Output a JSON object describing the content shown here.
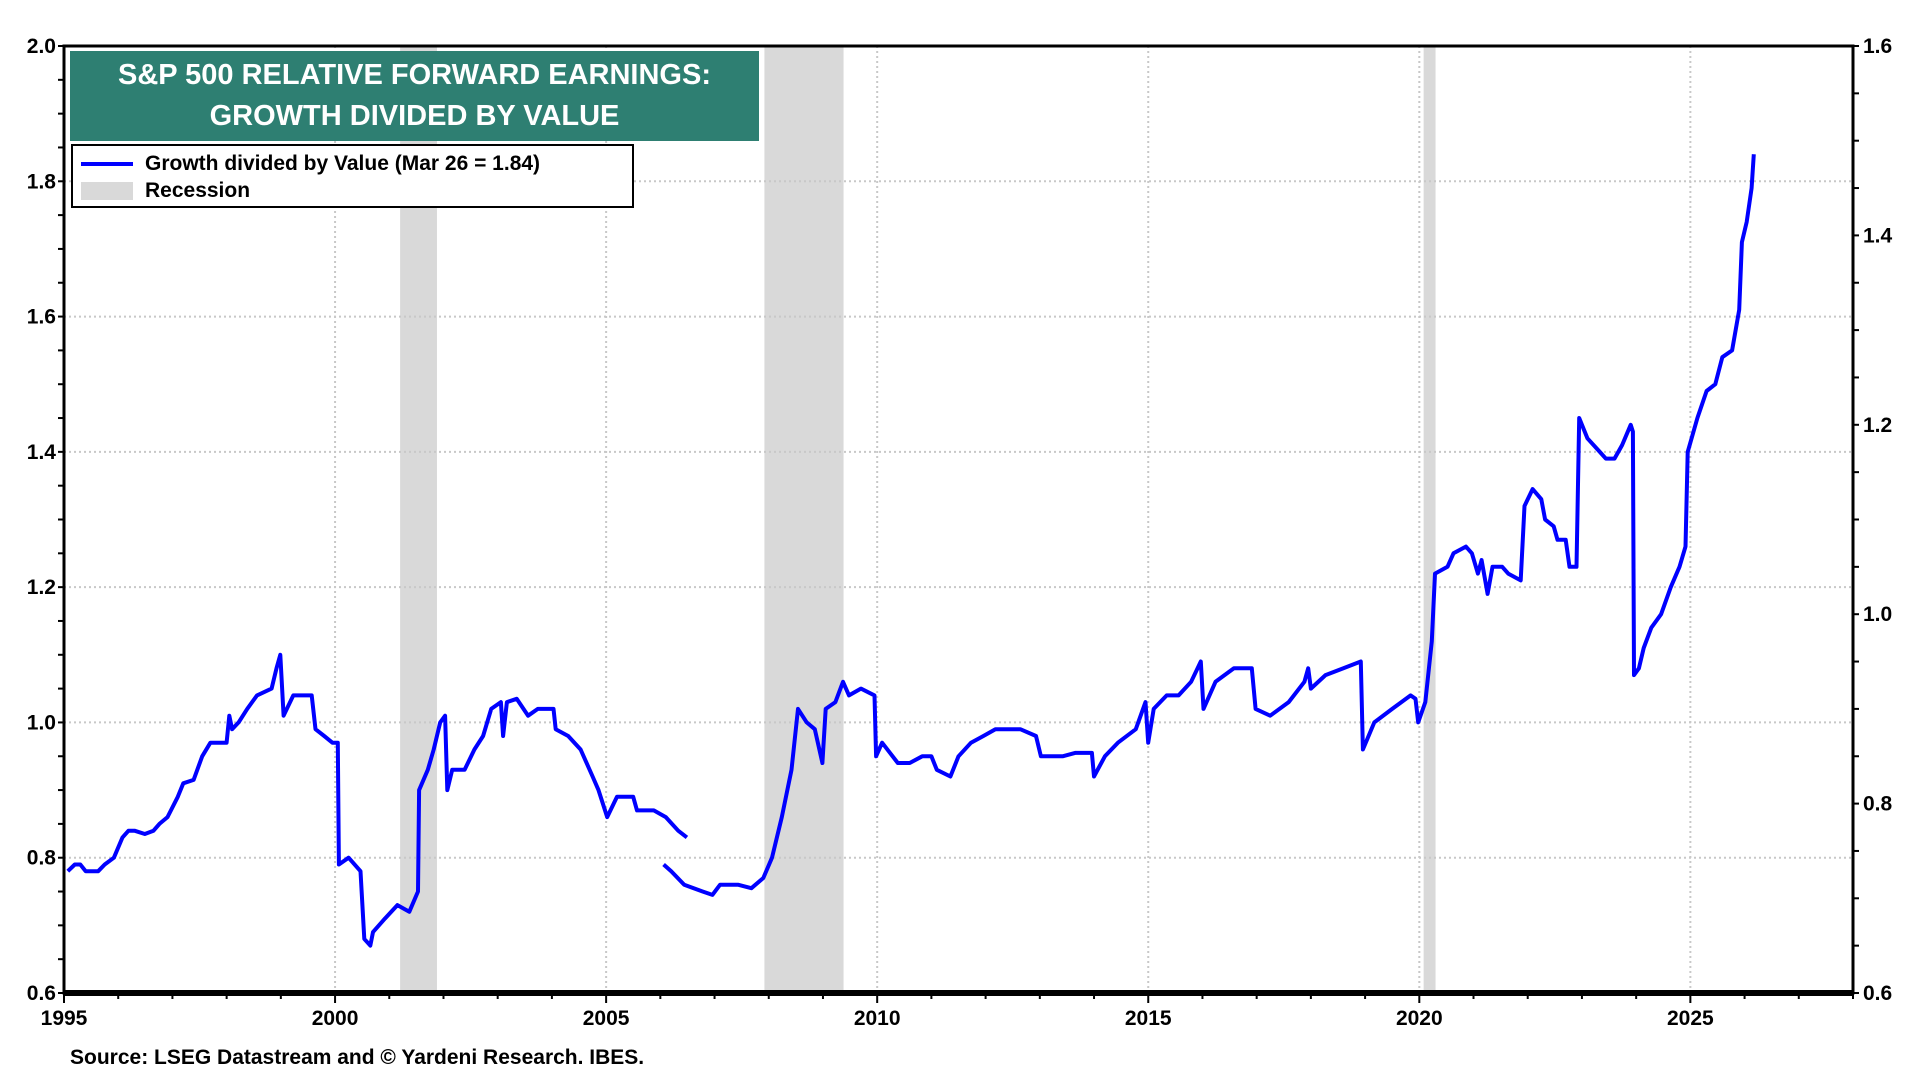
{
  "chart_data": {
    "type": "line",
    "title": "S&P 500 RELATIVE FORWARD EARNINGS:",
    "subtitle": "GROWTH DIVIDED BY VALUE",
    "xlabel": "",
    "ylabel": "",
    "xlim": [
      1995,
      2028
    ],
    "ylim": [
      0.6,
      2.0
    ],
    "ylim_right": [
      0.6,
      1.6
    ],
    "x_ticks": [
      "1995",
      "2000",
      "2005",
      "2010",
      "2015",
      "2020",
      "2025"
    ],
    "y_ticks": [
      "0.6",
      "0.8",
      "1.0",
      "1.2",
      "1.4",
      "1.6",
      "1.8",
      "2.0"
    ],
    "y_ticks_right": [
      "0.6",
      "0.8",
      "1.0",
      "1.2",
      "1.4",
      "1.6"
    ],
    "grid": true,
    "legend_position": "top-left",
    "legend": [
      {
        "label": "Growth divided by Value (Mar 26 = 1.84)",
        "color": "#0000ff",
        "kind": "line"
      },
      {
        "label": "Recession",
        "color": "#d9d9d9",
        "kind": "box"
      }
    ],
    "recessions": [
      [
        2001.2,
        2001.88
      ],
      [
        2007.92,
        2009.38
      ],
      [
        2020.08,
        2020.3
      ]
    ],
    "series": [
      {
        "name": "Growth divided by Value",
        "color": "#0000ff",
        "segments": [
          [
            [
              1995.07,
              0.78
            ],
            [
              1995.2,
              0.79
            ],
            [
              1995.3,
              0.79
            ],
            [
              1995.4,
              0.78
            ],
            [
              1995.63,
              0.78
            ],
            [
              1995.75,
              0.79
            ],
            [
              1995.92,
              0.8
            ],
            [
              1996.08,
              0.83
            ],
            [
              1996.19,
              0.84
            ],
            [
              1996.3,
              0.84
            ],
            [
              1996.49,
              0.835
            ],
            [
              1996.65,
              0.84
            ],
            [
              1996.76,
              0.85
            ],
            [
              1996.91,
              0.86
            ],
            [
              1997.1,
              0.89
            ],
            [
              1997.2,
              0.91
            ],
            [
              1997.39,
              0.915
            ],
            [
              1997.55,
              0.95
            ],
            [
              1997.7,
              0.97
            ],
            [
              1998.0,
              0.97
            ],
            [
              1998.05,
              1.01
            ],
            [
              1998.1,
              0.99
            ],
            [
              1998.22,
              1.0
            ],
            [
              1998.38,
              1.02
            ],
            [
              1998.56,
              1.04
            ],
            [
              1998.83,
              1.05
            ],
            [
              1998.92,
              1.08
            ],
            [
              1998.99,
              1.1
            ],
            [
              1999.05,
              1.01
            ],
            [
              1999.23,
              1.04
            ],
            [
              1999.46,
              1.04
            ],
            [
              1999.57,
              1.04
            ],
            [
              1999.64,
              0.99
            ],
            [
              1999.8,
              0.98
            ],
            [
              1999.95,
              0.97
            ],
            [
              2000.05,
              0.97
            ],
            [
              2000.07,
              0.79
            ],
            [
              2000.25,
              0.8
            ],
            [
              2000.47,
              0.78
            ],
            [
              2000.54,
              0.68
            ],
            [
              2000.65,
              0.67
            ],
            [
              2000.7,
              0.69
            ],
            [
              2000.92,
              0.71
            ],
            [
              2001.15,
              0.73
            ],
            [
              2001.37,
              0.72
            ],
            [
              2001.53,
              0.75
            ],
            [
              2001.55,
              0.9
            ],
            [
              2001.71,
              0.93
            ],
            [
              2001.82,
              0.96
            ],
            [
              2001.94,
              1.0
            ],
            [
              2002.03,
              1.01
            ],
            [
              2002.07,
              0.9
            ],
            [
              2002.16,
              0.93
            ],
            [
              2002.39,
              0.93
            ],
            [
              2002.57,
              0.96
            ],
            [
              2002.73,
              0.98
            ],
            [
              2002.88,
              1.02
            ],
            [
              2003.06,
              1.03
            ],
            [
              2003.1,
              0.98
            ],
            [
              2003.17,
              1.03
            ],
            [
              2003.35,
              1.035
            ],
            [
              2003.56,
              1.01
            ],
            [
              2003.74,
              1.02
            ],
            [
              2004.03,
              1.02
            ],
            [
              2004.07,
              0.99
            ],
            [
              2004.3,
              0.98
            ],
            [
              2004.53,
              0.96
            ],
            [
              2004.75,
              0.92
            ],
            [
              2004.86,
              0.9
            ],
            [
              2005.02,
              0.86
            ],
            [
              2005.2,
              0.89
            ],
            [
              2005.5,
              0.89
            ],
            [
              2005.57,
              0.87
            ],
            [
              2005.88,
              0.87
            ],
            [
              2006.1,
              0.86
            ],
            [
              2006.33,
              0.84
            ],
            [
              2006.49,
              0.83
            ]
          ],
          [
            [
              2006.06,
              0.79
            ],
            [
              2006.2,
              0.78
            ],
            [
              2006.44,
              0.76
            ],
            [
              2006.78,
              0.75
            ],
            [
              2006.96,
              0.745
            ],
            [
              2007.1,
              0.76
            ],
            [
              2007.44,
              0.76
            ],
            [
              2007.68,
              0.755
            ],
            [
              2007.9,
              0.77
            ],
            [
              2008.06,
              0.8
            ],
            [
              2008.24,
              0.86
            ],
            [
              2008.42,
              0.93
            ],
            [
              2008.54,
              1.02
            ],
            [
              2008.7,
              1.0
            ],
            [
              2008.85,
              0.99
            ],
            [
              2008.99,
              0.94
            ],
            [
              2009.05,
              1.02
            ],
            [
              2009.23,
              1.03
            ],
            [
              2009.37,
              1.06
            ],
            [
              2009.48,
              1.04
            ],
            [
              2009.7,
              1.05
            ],
            [
              2009.95,
              1.04
            ],
            [
              2009.98,
              0.95
            ],
            [
              2010.09,
              0.97
            ],
            [
              2010.38,
              0.94
            ],
            [
              2010.6,
              0.94
            ],
            [
              2010.83,
              0.95
            ],
            [
              2011.0,
              0.95
            ],
            [
              2011.1,
              0.93
            ],
            [
              2011.35,
              0.92
            ],
            [
              2011.5,
              0.95
            ],
            [
              2011.73,
              0.97
            ],
            [
              2011.96,
              0.98
            ],
            [
              2012.18,
              0.99
            ],
            [
              2012.64,
              0.99
            ],
            [
              2012.93,
              0.98
            ],
            [
              2013.02,
              0.95
            ],
            [
              2013.42,
              0.95
            ],
            [
              2013.65,
              0.955
            ],
            [
              2013.96,
              0.955
            ],
            [
              2014.0,
              0.92
            ],
            [
              2014.2,
              0.95
            ],
            [
              2014.44,
              0.97
            ],
            [
              2014.77,
              0.99
            ],
            [
              2014.95,
              1.03
            ],
            [
              2015.0,
              0.97
            ],
            [
              2015.1,
              1.02
            ],
            [
              2015.34,
              1.04
            ],
            [
              2015.56,
              1.04
            ],
            [
              2015.79,
              1.06
            ],
            [
              2015.97,
              1.09
            ],
            [
              2016.02,
              1.02
            ],
            [
              2016.24,
              1.06
            ],
            [
              2016.58,
              1.08
            ],
            [
              2016.91,
              1.08
            ],
            [
              2016.98,
              1.02
            ],
            [
              2017.25,
              1.01
            ],
            [
              2017.59,
              1.03
            ],
            [
              2017.88,
              1.06
            ],
            [
              2017.95,
              1.08
            ],
            [
              2018.0,
              1.05
            ],
            [
              2018.27,
              1.07
            ],
            [
              2018.6,
              1.08
            ],
            [
              2018.92,
              1.09
            ],
            [
              2018.96,
              0.96
            ],
            [
              2019.17,
              1.0
            ],
            [
              2019.5,
              1.02
            ],
            [
              2019.84,
              1.04
            ],
            [
              2019.93,
              1.035
            ],
            [
              2019.98,
              1.0
            ],
            [
              2020.11,
              1.03
            ],
            [
              2020.23,
              1.12
            ],
            [
              2020.29,
              1.22
            ],
            [
              2020.52,
              1.23
            ],
            [
              2020.63,
              1.25
            ],
            [
              2020.86,
              1.26
            ],
            [
              2020.97,
              1.25
            ],
            [
              2021.08,
              1.22
            ],
            [
              2021.15,
              1.24
            ],
            [
              2021.26,
              1.19
            ],
            [
              2021.35,
              1.23
            ],
            [
              2021.53,
              1.23
            ],
            [
              2021.64,
              1.22
            ],
            [
              2021.87,
              1.21
            ],
            [
              2021.94,
              1.32
            ],
            [
              2022.09,
              1.345
            ],
            [
              2022.25,
              1.33
            ],
            [
              2022.32,
              1.3
            ],
            [
              2022.48,
              1.29
            ],
            [
              2022.55,
              1.27
            ],
            [
              2022.7,
              1.27
            ],
            [
              2022.77,
              1.23
            ],
            [
              2022.9,
              1.23
            ],
            [
              2022.95,
              1.45
            ],
            [
              2023.1,
              1.42
            ],
            [
              2023.33,
              1.4
            ],
            [
              2023.44,
              1.39
            ],
            [
              2023.6,
              1.39
            ],
            [
              2023.74,
              1.41
            ],
            [
              2023.9,
              1.44
            ],
            [
              2023.94,
              1.43
            ],
            [
              2023.96,
              1.07
            ],
            [
              2024.05,
              1.08
            ],
            [
              2024.14,
              1.11
            ],
            [
              2024.28,
              1.14
            ],
            [
              2024.46,
              1.16
            ],
            [
              2024.64,
              1.2
            ],
            [
              2024.8,
              1.23
            ],
            [
              2024.91,
              1.26
            ],
            [
              2024.95,
              1.4
            ],
            [
              2025.13,
              1.45
            ],
            [
              2025.3,
              1.49
            ],
            [
              2025.46,
              1.5
            ],
            [
              2025.59,
              1.54
            ],
            [
              2025.77,
              1.55
            ],
            [
              2025.9,
              1.61
            ],
            [
              2025.95,
              1.71
            ],
            [
              2026.04,
              1.74
            ],
            [
              2026.13,
              1.79
            ],
            [
              2026.17,
              1.84
            ]
          ]
        ]
      }
    ],
    "source": "Source: LSEG Datastream and © Yardeni Research. IBES."
  }
}
